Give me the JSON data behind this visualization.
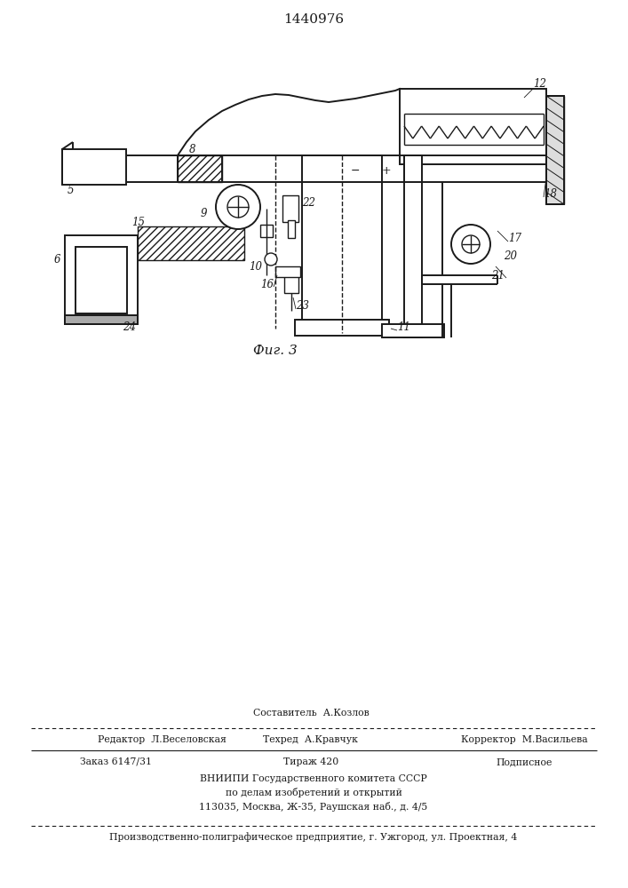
{
  "title": "1440976",
  "bg_color": "#f5f5f0",
  "line_color": "#1a1a1a",
  "footer": {
    "sestavitel": "Составитель  А.Козлов",
    "redaktor": "Редактор  Л.Веселовская",
    "tehred": "Техред  А.Кравчук",
    "korrektor": "Корректор  М.Васильева",
    "zakaz": "Заказ 6147/31",
    "tirazh": "Тираж 420",
    "podpisnoe": "Подписное",
    "vniip1": "ВНИИПИ Государственного комитета СССР",
    "vniip2": "по делам изобретений и открытий",
    "vniip3": "113035, Москва, Ж-35, Раушская наб., д. 4/5",
    "proizv": "Производственно-полиграфическое предприятие, г. Ужгород, ул. Проектная, 4"
  },
  "fig_caption": "Фиг. 3"
}
